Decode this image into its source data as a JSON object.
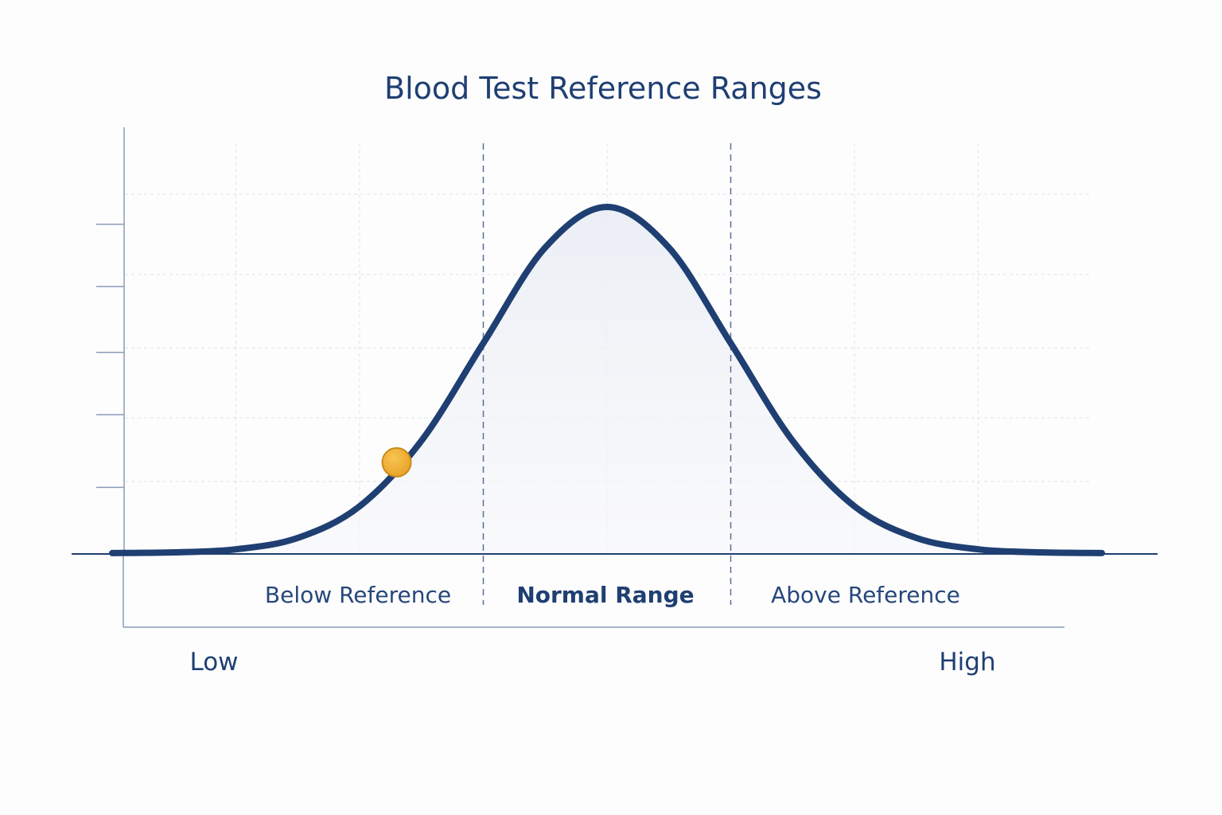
{
  "chart_data": {
    "type": "line",
    "title": "Blood Test Reference Ranges",
    "xlabel": "",
    "ylabel": "",
    "x_end_labels": {
      "low": "Low",
      "high": "High"
    },
    "xlim": [
      -4,
      4
    ],
    "ylim": [
      0,
      1.23
    ],
    "grid": true,
    "y_ticks": [
      0.19,
      0.4,
      0.58,
      0.77,
      0.95
    ],
    "x": [
      -4,
      -3.5,
      -3,
      -2.5,
      -2,
      -1.5,
      -1,
      -0.5,
      0,
      0.5,
      1,
      1.5,
      2,
      2.5,
      3,
      3.5,
      4
    ],
    "y": [
      0.0003,
      0.0022,
      0.0111,
      0.0439,
      0.1353,
      0.3247,
      0.6065,
      0.8825,
      1,
      0.8825,
      0.6065,
      0.3247,
      0.1353,
      0.0439,
      0.0111,
      0.0022,
      0.0003
    ],
    "regions": [
      {
        "label": "Below Reference",
        "from": -4,
        "to": -1
      },
      {
        "label": "Normal Range",
        "from": -1,
        "to": 1,
        "bold": true
      },
      {
        "label": "Above Reference",
        "from": 1,
        "to": 4
      }
    ],
    "marker": {
      "x": -1.72,
      "y": 0.26,
      "color": "#f0ae2e"
    },
    "colors": {
      "curve": "#1f3f72",
      "axis": "#8a9bb8",
      "grid": "#dde1e8",
      "text": "#1f3f72"
    }
  }
}
